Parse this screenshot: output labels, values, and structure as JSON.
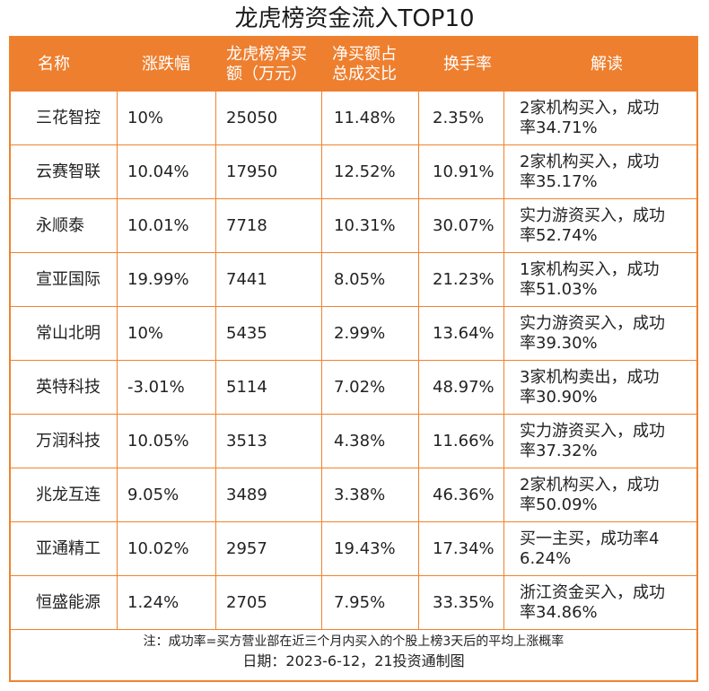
{
  "title": "龙虎榜资金流入TOP10",
  "headers": {
    "name": "名称",
    "change": "涨跌幅",
    "net_buy_line1": "龙虎榜净买",
    "net_buy_line2": "额（万元）",
    "ratio_line1": "净买额占",
    "ratio_line2": "总成交比",
    "turnover": "换手率",
    "interpretation": "解读"
  },
  "rows": [
    {
      "name": "三花智控",
      "change": "10%",
      "net_buy": "25050",
      "ratio": "11.48%",
      "turnover": "2.35%",
      "interp_line1": "2家机构买入，成功",
      "interp_line2": "率34.71%"
    },
    {
      "name": "云赛智联",
      "change": "10.04%",
      "net_buy": "17950",
      "ratio": "12.52%",
      "turnover": "10.91%",
      "interp_line1": "2家机构买入，成功",
      "interp_line2": "率35.17%"
    },
    {
      "name": "永顺泰",
      "change": "10.01%",
      "net_buy": "7718",
      "ratio": "10.31%",
      "turnover": "30.07%",
      "interp_line1": "实力游资买入，成功",
      "interp_line2": "率52.74%"
    },
    {
      "name": "宣亚国际",
      "change": "19.99%",
      "net_buy": "7441",
      "ratio": "8.05%",
      "turnover": "21.23%",
      "interp_line1": "1家机构买入，成功",
      "interp_line2": "率51.03%"
    },
    {
      "name": "常山北明",
      "change": "10%",
      "net_buy": "5435",
      "ratio": "2.99%",
      "turnover": "13.64%",
      "interp_line1": "实力游资买入，成功",
      "interp_line2": "率39.30%"
    },
    {
      "name": "英特科技",
      "change": "-3.01%",
      "net_buy": "5114",
      "ratio": "7.02%",
      "turnover": "48.97%",
      "interp_line1": "3家机构卖出，成功",
      "interp_line2": "率30.90%"
    },
    {
      "name": "万润科技",
      "change": "10.05%",
      "net_buy": "3513",
      "ratio": "4.38%",
      "turnover": "11.66%",
      "interp_line1": "实力游资买入，成功",
      "interp_line2": "率37.32%"
    },
    {
      "name": "兆龙互连",
      "change": "9.05%",
      "net_buy": "3489",
      "ratio": "3.38%",
      "turnover": "46.36%",
      "interp_line1": "2家机构买入，成功",
      "interp_line2": "率50.09%"
    },
    {
      "name": "亚通精工",
      "change": "10.02%",
      "net_buy": "2957",
      "ratio": "19.43%",
      "turnover": "17.34%",
      "interp_line1": "买一主买，成功率4",
      "interp_line2": "6.24%"
    },
    {
      "name": "恒盛能源",
      "change": "1.24%",
      "net_buy": "2705",
      "ratio": "7.95%",
      "turnover": "33.35%",
      "interp_line1": "浙江资金买入，成功",
      "interp_line2": "率34.86%"
    }
  ],
  "footer": {
    "note": "注：成功率=买方营业部在近三个月内买入的个股上榜3天后的平均上涨概率",
    "credit": "日期：2023-6-12，21投资通制图"
  },
  "colors": {
    "header_bg": "#ee7f2f",
    "border": "#f0822d",
    "header_text": "#ffffff"
  }
}
